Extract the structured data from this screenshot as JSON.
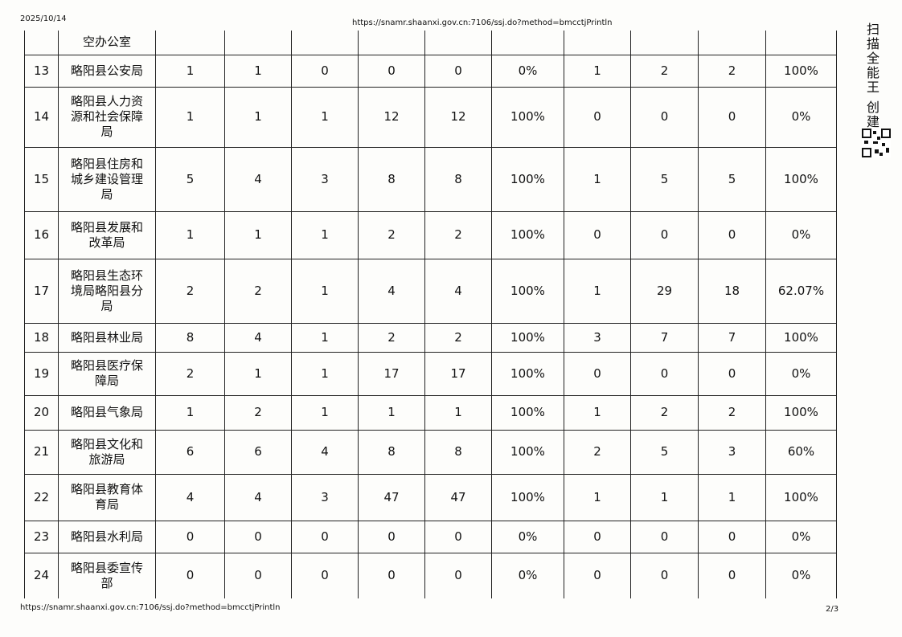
{
  "header": {
    "date": "2025/10/14",
    "url": "https://snamr.shaanxi.gov.cn:7106/ssj.do?method=bmcctjPrintln"
  },
  "table": {
    "partial_row_label": "空办公室",
    "rows": [
      [
        "13",
        "略阳县公安局",
        "1",
        "1",
        "0",
        "0",
        "0",
        "0%",
        "1",
        "2",
        "2",
        "100%"
      ],
      [
        "14",
        "略阳县人力资源和社会保障局",
        "1",
        "1",
        "1",
        "12",
        "12",
        "100%",
        "0",
        "0",
        "0",
        "0%"
      ],
      [
        "15",
        "略阳县住房和城乡建设管理局",
        "5",
        "4",
        "3",
        "8",
        "8",
        "100%",
        "1",
        "5",
        "5",
        "100%"
      ],
      [
        "16",
        "略阳县发展和改革局",
        "1",
        "1",
        "1",
        "2",
        "2",
        "100%",
        "0",
        "0",
        "0",
        "0%"
      ],
      [
        "17",
        "略阳县生态环境局略阳县分局",
        "2",
        "2",
        "1",
        "4",
        "4",
        "100%",
        "1",
        "29",
        "18",
        "62.07%"
      ],
      [
        "18",
        "略阳县林业局",
        "8",
        "4",
        "1",
        "2",
        "2",
        "100%",
        "3",
        "7",
        "7",
        "100%"
      ],
      [
        "19",
        "略阳县医疗保障局",
        "2",
        "1",
        "1",
        "17",
        "17",
        "100%",
        "0",
        "0",
        "0",
        "0%"
      ],
      [
        "20",
        "略阳县气象局",
        "1",
        "2",
        "1",
        "1",
        "1",
        "100%",
        "1",
        "2",
        "2",
        "100%"
      ],
      [
        "21",
        "略阳县文化和旅游局",
        "6",
        "6",
        "4",
        "8",
        "8",
        "100%",
        "2",
        "5",
        "3",
        "60%"
      ],
      [
        "22",
        "略阳县教育体育局",
        "4",
        "4",
        "3",
        "47",
        "47",
        "100%",
        "1",
        "1",
        "1",
        "100%"
      ],
      [
        "23",
        "略阳县水利局",
        "0",
        "0",
        "0",
        "0",
        "0",
        "0%",
        "0",
        "0",
        "0",
        "0%"
      ],
      [
        "24",
        "略阳县委宣传部",
        "0",
        "0",
        "0",
        "0",
        "0",
        "0%",
        "0",
        "0",
        "0",
        "0%"
      ]
    ]
  },
  "footer": {
    "url": "https://snamr.shaanxi.gov.cn:7106/ssj.do?method=bmcctjPrintln",
    "page": "2/3"
  },
  "watermark": "扫描全能王 创建"
}
